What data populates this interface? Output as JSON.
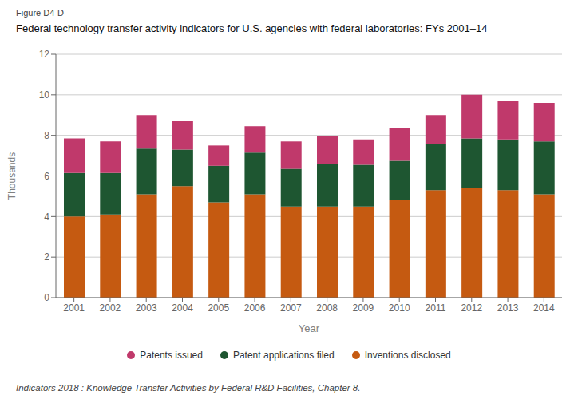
{
  "chart_data": {
    "type": "bar",
    "stacked": true,
    "subtitle": "Figure D4-D",
    "title": "Federal technology transfer activity indicators for U.S. agencies with federal laboratories: FYs 2001–14",
    "x_label": "Year",
    "y_label": "Thousands",
    "annotations": [
      "Indicators 2018 : Knowledge Transfer Activities by Federal R&D Facilities, Chapter 8."
    ],
    "categories": [
      "2001",
      "2002",
      "2003",
      "2004",
      "2005",
      "2006",
      "2007",
      "2008",
      "2009",
      "2010",
      "2011",
      "2012",
      "2013",
      "2014"
    ],
    "series": [
      {
        "name": "Inventions disclosed",
        "color": "#c55a11",
        "values": [
          4.0,
          4.1,
          5.1,
          5.5,
          4.7,
          5.1,
          4.5,
          4.5,
          4.5,
          4.8,
          5.3,
          5.4,
          5.3,
          5.1
        ]
      },
      {
        "name": "Patent applications filed",
        "color": "#1e5631",
        "values": [
          2.15,
          2.05,
          2.25,
          1.8,
          1.8,
          2.05,
          1.85,
          2.1,
          2.05,
          1.95,
          2.25,
          2.45,
          2.5,
          2.6
        ]
      },
      {
        "name": "Patents issued",
        "color": "#c0396b",
        "values": [
          1.7,
          1.55,
          1.65,
          1.4,
          1.0,
          1.3,
          1.35,
          1.35,
          1.25,
          1.6,
          1.45,
          2.15,
          1.9,
          1.9
        ]
      }
    ],
    "ylim": [
      0,
      12
    ],
    "yticks": [
      0,
      2,
      4,
      6,
      8,
      10,
      12
    ],
    "grid": true,
    "legend": "bottom"
  }
}
